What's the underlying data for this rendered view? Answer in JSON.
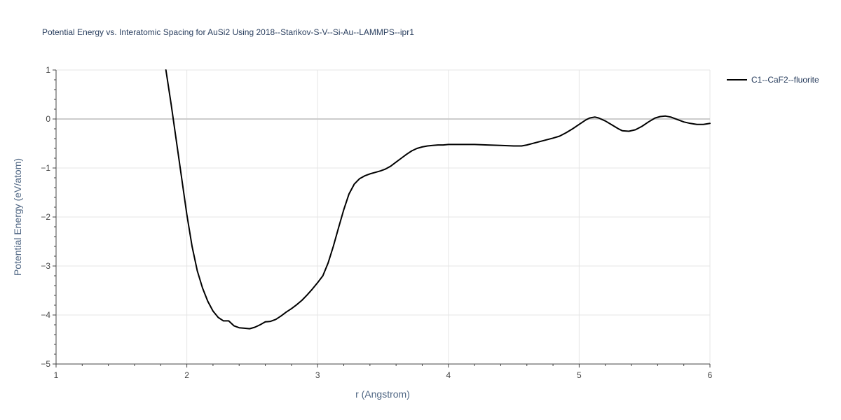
{
  "chart_data": {
    "type": "line",
    "title": "Potential Energy vs. Interatomic Spacing for AuSi2 Using 2018--Starikov-S-V--Si-Au--LAMMPS--ipr1",
    "xlabel": "r (Angstrom)",
    "ylabel": "Potential Energy (eV/atom)",
    "xlim": [
      1,
      6
    ],
    "ylim": [
      -5,
      1
    ],
    "x_ticks": [
      1,
      2,
      3,
      4,
      5,
      6
    ],
    "x_tick_labels": [
      "1",
      "2",
      "3",
      "4",
      "5",
      "6"
    ],
    "y_ticks": [
      1,
      0,
      -1,
      -2,
      -3,
      -4,
      -5
    ],
    "y_tick_labels": [
      "1",
      "0",
      "−1",
      "−2",
      "−3",
      "−4",
      "−5"
    ],
    "grid": true,
    "legend_position": "top-right",
    "series": [
      {
        "name": "C1--CaF2--fluorite",
        "color": "#000000",
        "x": [
          1.84,
          1.88,
          1.92,
          1.96,
          2.0,
          2.04,
          2.08,
          2.12,
          2.16,
          2.2,
          2.24,
          2.28,
          2.32,
          2.36,
          2.4,
          2.44,
          2.48,
          2.52,
          2.56,
          2.6,
          2.64,
          2.68,
          2.72,
          2.76,
          2.8,
          2.84,
          2.88,
          2.92,
          2.96,
          3.0,
          3.04,
          3.08,
          3.12,
          3.16,
          3.2,
          3.24,
          3.28,
          3.32,
          3.36,
          3.4,
          3.44,
          3.48,
          3.52,
          3.56,
          3.6,
          3.64,
          3.68,
          3.72,
          3.76,
          3.8,
          3.84,
          3.88,
          3.92,
          3.96,
          4.0,
          4.1,
          4.2,
          4.3,
          4.4,
          4.5,
          4.56,
          4.6,
          4.7,
          4.8,
          4.85,
          4.9,
          4.95,
          5.0,
          5.05,
          5.08,
          5.12,
          5.15,
          5.2,
          5.25,
          5.3,
          5.33,
          5.38,
          5.43,
          5.48,
          5.53,
          5.58,
          5.62,
          5.66,
          5.7,
          5.75,
          5.8,
          5.85,
          5.9,
          5.95,
          6.0
        ],
        "y": [
          1.0,
          0.3,
          -0.45,
          -1.2,
          -1.95,
          -2.6,
          -3.1,
          -3.45,
          -3.72,
          -3.92,
          -4.05,
          -4.12,
          -4.12,
          -4.22,
          -4.26,
          -4.27,
          -4.28,
          -4.25,
          -4.2,
          -4.14,
          -4.13,
          -4.09,
          -4.02,
          -3.94,
          -3.87,
          -3.79,
          -3.7,
          -3.59,
          -3.47,
          -3.34,
          -3.2,
          -2.94,
          -2.6,
          -2.22,
          -1.85,
          -1.53,
          -1.33,
          -1.22,
          -1.16,
          -1.12,
          -1.09,
          -1.06,
          -1.02,
          -0.96,
          -0.88,
          -0.8,
          -0.72,
          -0.65,
          -0.6,
          -0.57,
          -0.55,
          -0.54,
          -0.53,
          -0.53,
          -0.52,
          -0.52,
          -0.52,
          -0.53,
          -0.54,
          -0.55,
          -0.55,
          -0.53,
          -0.46,
          -0.39,
          -0.35,
          -0.28,
          -0.2,
          -0.11,
          -0.02,
          0.02,
          0.04,
          0.02,
          -0.04,
          -0.12,
          -0.2,
          -0.24,
          -0.25,
          -0.22,
          -0.15,
          -0.06,
          0.02,
          0.05,
          0.06,
          0.04,
          -0.01,
          -0.06,
          -0.09,
          -0.11,
          -0.11,
          -0.09
        ]
      }
    ]
  }
}
